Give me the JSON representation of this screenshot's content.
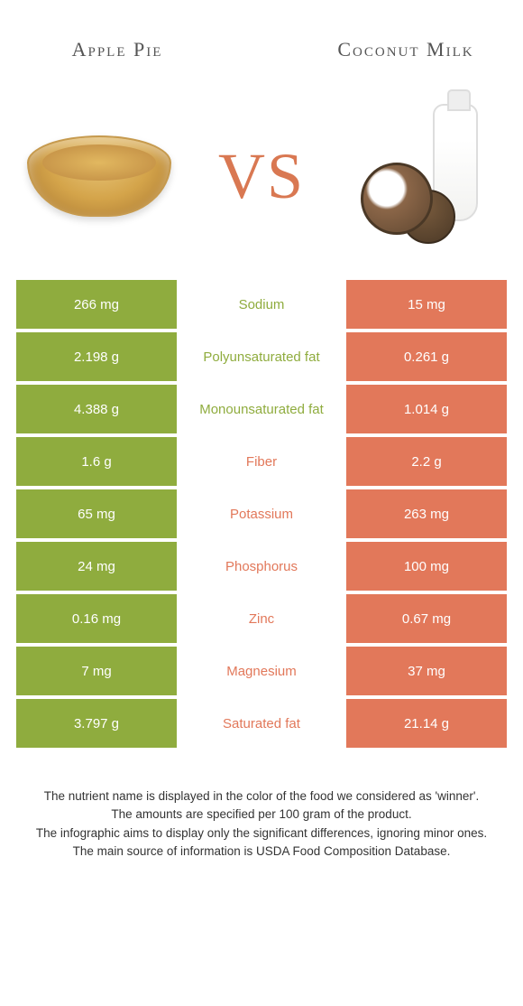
{
  "colors": {
    "green": "#8fac3e",
    "orange": "#e2785a",
    "vs": "#d97852",
    "title": "#555555"
  },
  "header": {
    "left_title": "Apple Pie",
    "right_title": "Coconut Milk",
    "vs_label": "VS"
  },
  "rows": [
    {
      "left": "266 mg",
      "label": "Sodium",
      "right": "15 mg",
      "winner": "left"
    },
    {
      "left": "2.198 g",
      "label": "Polyunsaturated fat",
      "right": "0.261 g",
      "winner": "left"
    },
    {
      "left": "4.388 g",
      "label": "Monounsaturated fat",
      "right": "1.014 g",
      "winner": "left"
    },
    {
      "left": "1.6 g",
      "label": "Fiber",
      "right": "2.2 g",
      "winner": "right"
    },
    {
      "left": "65 mg",
      "label": "Potassium",
      "right": "263 mg",
      "winner": "right"
    },
    {
      "left": "24 mg",
      "label": "Phosphorus",
      "right": "100 mg",
      "winner": "right"
    },
    {
      "left": "0.16 mg",
      "label": "Zinc",
      "right": "0.67 mg",
      "winner": "right"
    },
    {
      "left": "7 mg",
      "label": "Magnesium",
      "right": "37 mg",
      "winner": "right"
    },
    {
      "left": "3.797 g",
      "label": "Saturated fat",
      "right": "21.14 g",
      "winner": "right"
    }
  ],
  "footer": {
    "line1": "The nutrient name is displayed in the color of the food we considered as 'winner'.",
    "line2": "The amounts are specified per 100 gram of the product.",
    "line3": "The infographic aims to display only the significant differences, ignoring minor ones.",
    "line4": "The main source of information is USDA Food Composition Database."
  }
}
